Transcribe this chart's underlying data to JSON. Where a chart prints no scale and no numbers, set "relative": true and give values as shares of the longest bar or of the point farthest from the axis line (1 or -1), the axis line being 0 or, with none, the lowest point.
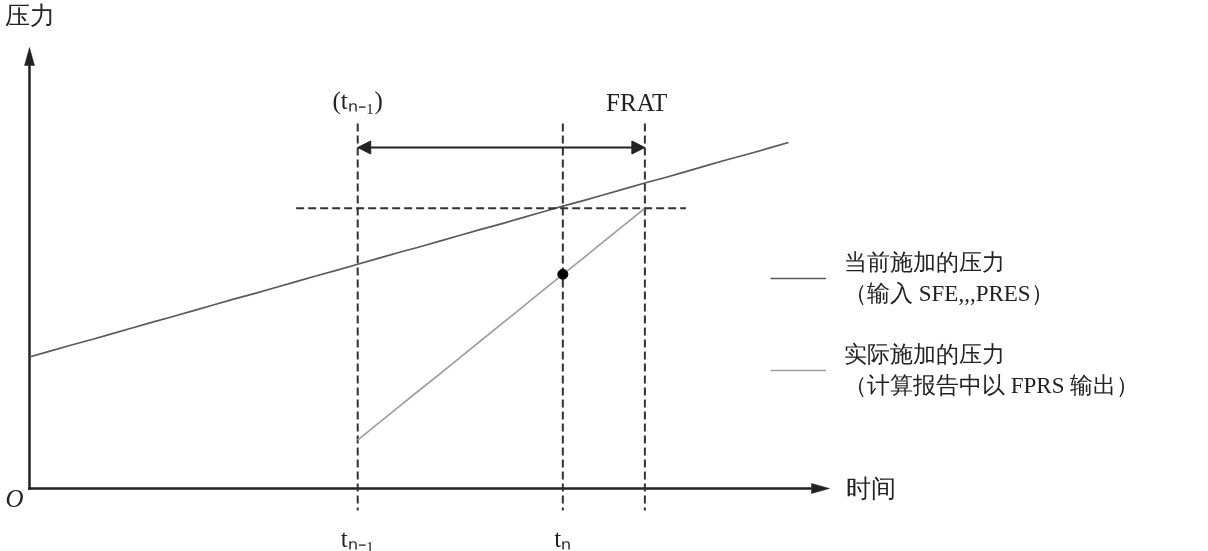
{
  "chart_data": {
    "type": "line",
    "ylabel": "压力",
    "xlabel": "时间",
    "relative": true,
    "categories": [
      null,
      null,
      null,
      null,
      null,
      null,
      null,
      null,
      null,
      null,
      null,
      null,
      null,
      null,
      null,
      null,
      "tₙ₋₁",
      null,
      null,
      null,
      null,
      null,
      null,
      null,
      null,
      null,
      "tₙ",
      null,
      null,
      null,
      null,
      null,
      null,
      null,
      null,
      null,
      null,
      null,
      null
    ],
    "series": [
      {
        "name": "当前施加的压力（输入 SFE,,,PRES）",
        "color": "#5a5a5a",
        "values": [
          0.38,
          0.397,
          0.414,
          0.43,
          0.447,
          0.464,
          0.481,
          0.497,
          0.514,
          0.531,
          0.548,
          0.564,
          0.581,
          0.598,
          0.615,
          0.631,
          0.648,
          0.665,
          0.682,
          0.698,
          0.715,
          0.732,
          0.749,
          0.765,
          0.782,
          0.799,
          0.816,
          0.832,
          0.849,
          0.866,
          0.883,
          0.899,
          0.916,
          0.933,
          0.95,
          0.966,
          0.983,
          1.0,
          null
        ]
      },
      {
        "name": "实际施加的压力（计算报告中以 FPRS 输出）",
        "color": "#a0a0a0",
        "values": [
          null,
          null,
          null,
          null,
          null,
          null,
          null,
          null,
          null,
          null,
          null,
          null,
          null,
          null,
          null,
          null,
          0.14,
          0.188,
          0.236,
          0.284,
          0.331,
          0.379,
          0.427,
          0.475,
          0.523,
          0.571,
          0.619,
          0.666,
          0.714,
          0.762,
          0.81,
          null,
          null,
          null,
          null,
          null,
          null,
          null,
          null
        ]
      },
      {
        "type": "line",
        "color": "#333333",
        "line_style": "dashed",
        "values": [
          null,
          null,
          null,
          null,
          null,
          null,
          null,
          null,
          null,
          null,
          null,
          null,
          null,
          0.81,
          0.81,
          0.81,
          0.81,
          0.81,
          0.81,
          0.81,
          0.81,
          0.81,
          0.81,
          0.81,
          0.81,
          0.81,
          0.81,
          0.81,
          0.81,
          0.81,
          0.81,
          0.81,
          0.81,
          null,
          null,
          null,
          null,
          null,
          null
        ]
      },
      {
        "type": "scatter",
        "color": "#000000",
        "marker": "circle",
        "values": [
          null,
          null,
          null,
          null,
          null,
          null,
          null,
          null,
          null,
          null,
          null,
          null,
          null,
          null,
          null,
          null,
          null,
          null,
          null,
          null,
          null,
          null,
          null,
          null,
          null,
          null,
          0.619,
          null,
          null,
          null,
          null,
          null,
          null,
          null,
          null,
          null,
          null,
          null,
          null
        ]
      }
    ],
    "ref_lines": [
      {
        "axis": "x",
        "value": "tₙ₋₁",
        "label": "(tₙ₋₁)",
        "color": "#333333",
        "line_style": "dashed"
      },
      {
        "axis": "x",
        "value": "tₙ",
        "color": "#333333",
        "line_style": "dashed"
      }
    ],
    "annotations": [
      "O",
      "FRAT"
    ],
    "legend": "right"
  }
}
